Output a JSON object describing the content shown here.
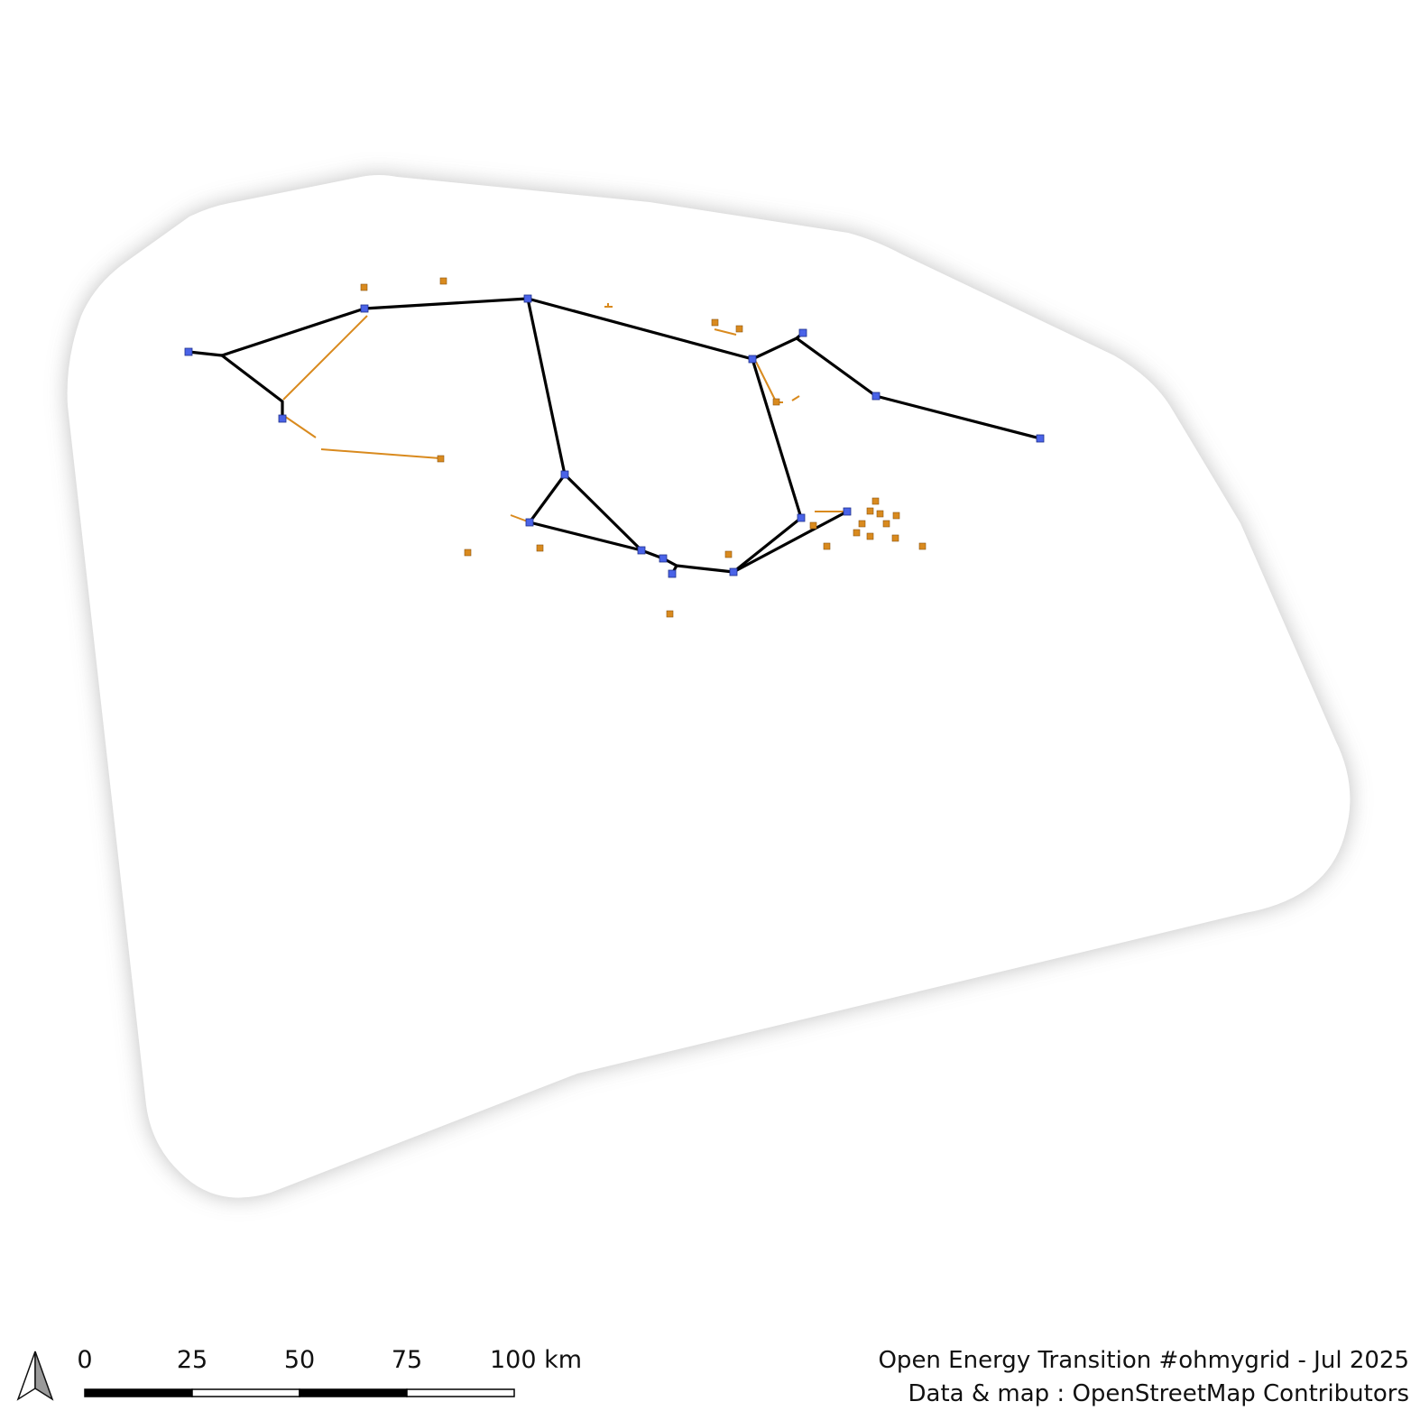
{
  "scale_bar": {
    "labels": [
      "0",
      "25",
      "50",
      "75",
      "100 km"
    ]
  },
  "credits": {
    "line1": "Open Energy Transition #ohmygrid - Jul 2025",
    "line2": "Data & map : OpenStreetMap Contributors"
  },
  "legend_colors": {
    "high_voltage_line": "#000000",
    "substation": "#4a63e8",
    "secondary_line": "#d98a1e",
    "minor_site": "#d98a1e",
    "region_fill": "#ffffff",
    "region_shadow": "#bfbfbf"
  },
  "icons": {
    "north_arrow": "north-arrow-icon"
  }
}
